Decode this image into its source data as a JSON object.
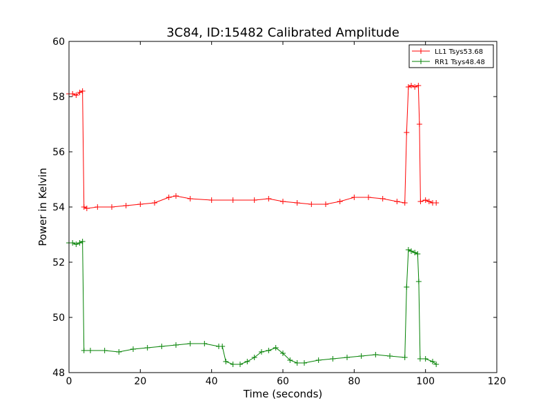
{
  "chart_data": {
    "type": "line",
    "title": "3C84, ID:15482 Calibrated Amplitude",
    "xlabel": "Time (seconds)",
    "ylabel": "Power in Kelvin",
    "xlim": [
      0,
      120
    ],
    "ylim": [
      48,
      60
    ],
    "x_ticks": [
      "0",
      "20",
      "40",
      "60",
      "80",
      "100",
      "120"
    ],
    "y_ticks": [
      "48",
      "50",
      "52",
      "54",
      "56",
      "58",
      "60"
    ],
    "grid": false,
    "legend_position": "top-right",
    "marker": "plus",
    "series": [
      {
        "name": "LL1 Tsys53.68",
        "color": "#ff0000",
        "x": [
          0,
          1,
          2,
          3,
          3.8,
          4.2,
          5,
          8,
          12,
          16,
          20,
          24,
          28,
          30,
          34,
          40,
          46,
          52,
          56,
          60,
          64,
          68,
          72,
          76,
          80,
          84,
          88,
          92,
          94.2,
          94.7,
          95.2,
          96,
          97,
          98,
          98.3,
          98.6,
          100,
          101,
          102,
          103
        ],
        "y": [
          58.1,
          58.1,
          58.05,
          58.15,
          58.2,
          54.0,
          53.95,
          54.0,
          54.0,
          54.05,
          54.1,
          54.15,
          54.35,
          54.4,
          54.3,
          54.25,
          54.25,
          54.25,
          54.3,
          54.2,
          54.15,
          54.1,
          54.1,
          54.2,
          54.35,
          54.35,
          54.3,
          54.2,
          54.15,
          56.7,
          58.35,
          58.4,
          58.35,
          58.4,
          57.0,
          54.2,
          54.25,
          54.2,
          54.15,
          54.15
        ]
      },
      {
        "name": "RR1 Tsys48.48",
        "color": "#008000",
        "x": [
          0,
          1,
          2,
          3,
          3.8,
          4.2,
          6,
          10,
          14,
          18,
          22,
          26,
          30,
          34,
          38,
          42,
          43,
          44,
          46,
          48,
          50,
          52,
          54,
          56,
          58,
          60,
          62,
          64,
          66,
          70,
          74,
          78,
          82,
          86,
          90,
          94.2,
          94.7,
          95.2,
          96,
          97,
          97.8,
          98.1,
          98.5,
          100,
          102,
          103
        ],
        "y": [
          52.7,
          52.7,
          52.65,
          52.7,
          52.75,
          48.8,
          48.8,
          48.8,
          48.75,
          48.85,
          48.9,
          48.95,
          49.0,
          49.05,
          49.05,
          48.95,
          48.95,
          48.4,
          48.3,
          48.3,
          48.4,
          48.55,
          48.75,
          48.8,
          48.9,
          48.7,
          48.45,
          48.35,
          48.35,
          48.45,
          48.5,
          48.55,
          48.6,
          48.65,
          48.6,
          48.55,
          51.1,
          52.45,
          52.4,
          52.35,
          52.3,
          51.3,
          48.5,
          48.5,
          48.4,
          48.3
        ]
      }
    ]
  }
}
